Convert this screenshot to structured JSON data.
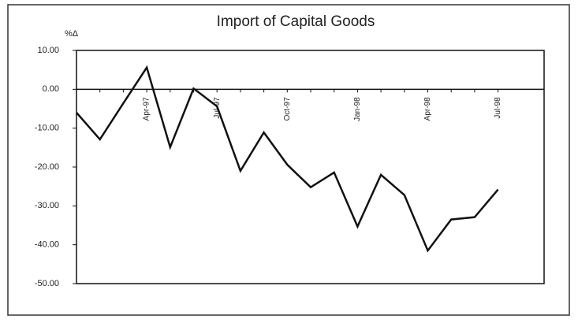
{
  "chart_data": {
    "type": "line",
    "title": "Import of Capital Goods",
    "y_label": "%Δ",
    "categories": [
      null,
      null,
      null,
      "Apr-97",
      null,
      null,
      "Jul-97",
      null,
      null,
      "Oct-97",
      null,
      null,
      "Jan-98",
      null,
      null,
      "Apr-98",
      null,
      null,
      "Jul-98"
    ],
    "series": [
      {
        "color": "#111111",
        "values": [
          -6.0,
          -12.9,
          -3.6,
          5.6,
          -14.9,
          0.2,
          -4.4,
          -21.0,
          -11.1,
          -19.4,
          -25.2,
          -21.4,
          -35.3,
          -22.0,
          -27.2,
          -41.5,
          -33.5,
          -32.9,
          -25.8
        ]
      }
    ],
    "ylim": [
      -50,
      10
    ],
    "yticks": [
      {
        "value": 10,
        "label": "10.00"
      },
      {
        "value": 0,
        "label": "0.00"
      },
      {
        "value": -10,
        "label": "-10.00"
      },
      {
        "value": -20,
        "label": "-20.00"
      },
      {
        "value": -30,
        "label": "-30.00"
      },
      {
        "value": -40,
        "label": "-40.00"
      },
      {
        "value": -50,
        "label": "-50.00"
      }
    ],
    "grid": false
  }
}
